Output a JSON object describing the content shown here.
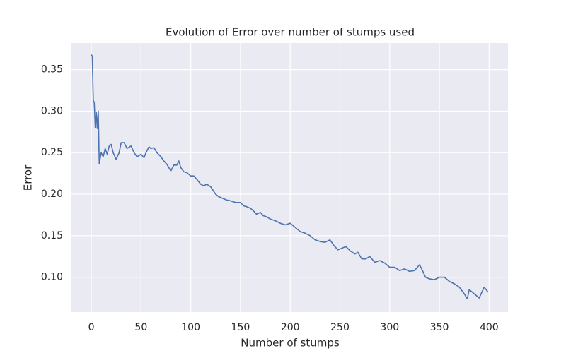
{
  "chart_data": {
    "type": "line",
    "title": "Evolution of Error over number of stumps used",
    "xlabel": "Number of stumps",
    "ylabel": "Error",
    "series": [
      {
        "color": "#4c72b0",
        "x": [
          0,
          1,
          2,
          3,
          4,
          5,
          6,
          7,
          8,
          10,
          12,
          14,
          16,
          18,
          20,
          22,
          25,
          28,
          30,
          33,
          36,
          40,
          43,
          46,
          50,
          53,
          55,
          58,
          60,
          63,
          66,
          70,
          73,
          76,
          80,
          83,
          86,
          88,
          90,
          93,
          96,
          100,
          103,
          106,
          110,
          113,
          116,
          120,
          125,
          128,
          132,
          136,
          140,
          145,
          150,
          153,
          156,
          160,
          163,
          166,
          170,
          173,
          176,
          180,
          185,
          190,
          195,
          200,
          205,
          210,
          215,
          220,
          225,
          230,
          235,
          240,
          244,
          248,
          252,
          256,
          260,
          265,
          268,
          272,
          276,
          280,
          285,
          290,
          295,
          300,
          305,
          310,
          315,
          320,
          325,
          330,
          333,
          336,
          340,
          345,
          350,
          355,
          360,
          365,
          370,
          375,
          378,
          380,
          385,
          390,
          395,
          399
        ],
        "values": [
          0.368,
          0.366,
          0.313,
          0.31,
          0.28,
          0.299,
          0.279,
          0.3,
          0.237,
          0.25,
          0.245,
          0.255,
          0.248,
          0.258,
          0.26,
          0.25,
          0.242,
          0.25,
          0.262,
          0.262,
          0.255,
          0.258,
          0.25,
          0.245,
          0.248,
          0.244,
          0.25,
          0.257,
          0.255,
          0.256,
          0.25,
          0.245,
          0.24,
          0.236,
          0.228,
          0.235,
          0.235,
          0.24,
          0.232,
          0.227,
          0.226,
          0.222,
          0.222,
          0.218,
          0.212,
          0.21,
          0.212,
          0.209,
          0.2,
          0.197,
          0.195,
          0.193,
          0.192,
          0.19,
          0.19,
          0.186,
          0.185,
          0.183,
          0.18,
          0.176,
          0.178,
          0.174,
          0.173,
          0.17,
          0.168,
          0.165,
          0.163,
          0.165,
          0.16,
          0.155,
          0.153,
          0.15,
          0.145,
          0.143,
          0.142,
          0.145,
          0.138,
          0.133,
          0.135,
          0.137,
          0.132,
          0.128,
          0.13,
          0.122,
          0.122,
          0.125,
          0.118,
          0.12,
          0.117,
          0.112,
          0.112,
          0.108,
          0.11,
          0.107,
          0.108,
          0.115,
          0.108,
          0.1,
          0.098,
          0.097,
          0.1,
          0.1,
          0.095,
          0.092,
          0.088,
          0.08,
          0.074,
          0.085,
          0.08,
          0.075,
          0.088,
          0.082
        ]
      }
    ],
    "xlim": [
      -19.95,
      418.95
    ],
    "ylim": [
      0.058,
      0.382
    ],
    "xticks": [
      0,
      50,
      100,
      150,
      200,
      250,
      300,
      350,
      400
    ],
    "yticks": [
      {
        "value": 0.1,
        "label": "0.10"
      },
      {
        "value": 0.15,
        "label": "0.15"
      },
      {
        "value": 0.2,
        "label": "0.20"
      },
      {
        "value": 0.25,
        "label": "0.25"
      },
      {
        "value": 0.3,
        "label": "0.30"
      },
      {
        "value": 0.35,
        "label": "0.35"
      }
    ],
    "grid": true
  }
}
